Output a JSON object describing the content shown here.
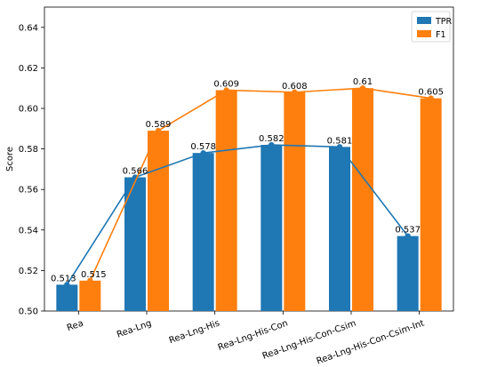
{
  "chart_data": {
    "type": "bar",
    "title": "",
    "xlabel": "",
    "ylabel": "Score",
    "ylim": [
      0.5,
      0.65
    ],
    "yticks": [
      "0.50",
      "0.52",
      "0.54",
      "0.56",
      "0.58",
      "0.60",
      "0.62",
      "0.64"
    ],
    "categories": [
      "Rea",
      "Rea-Lng",
      "Rea-Lng-His",
      "Rea-Lng-His-Con",
      "Rea-Lng-His-Con-Csim",
      "Rea-Lng-His-Con-Csim-Int"
    ],
    "series": [
      {
        "name": "TPR",
        "color": "#1f77b4",
        "values": [
          0.513,
          0.566,
          0.578,
          0.582,
          0.581,
          0.537
        ],
        "labels": [
          "0.513",
          "0.566",
          "0.578",
          "0.582",
          "0.581",
          "0.537"
        ]
      },
      {
        "name": "F1",
        "color": "#ff7f0e",
        "values": [
          0.515,
          0.589,
          0.609,
          0.608,
          0.61,
          0.605
        ],
        "labels": [
          "0.515",
          "0.589",
          "0.609",
          "0.608",
          "0.61",
          "0.605"
        ]
      }
    ],
    "line_overlay": true,
    "grid": false,
    "legend_position": "top-right"
  }
}
